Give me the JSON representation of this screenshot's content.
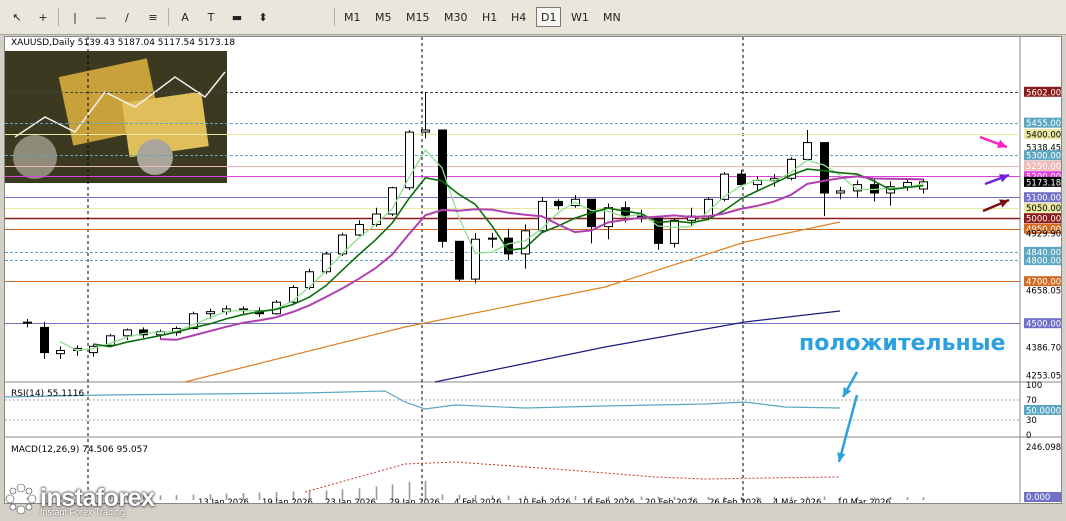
{
  "toolbar": {
    "tools": [
      {
        "name": "cursor-icon",
        "glyph": "↖"
      },
      {
        "name": "crosshair-icon",
        "glyph": "+"
      },
      {
        "name": "vertical-line-icon",
        "glyph": "|"
      },
      {
        "name": "horizontal-line-icon",
        "glyph": "—"
      },
      {
        "name": "trendline-icon",
        "glyph": "∕"
      },
      {
        "name": "channel-icon",
        "glyph": "≡"
      },
      {
        "name": "text-icon",
        "glyph": "A"
      },
      {
        "name": "text-label-icon",
        "glyph": "T"
      },
      {
        "name": "shapes-icon",
        "glyph": "▬"
      },
      {
        "name": "arrows-icon",
        "glyph": "⬍"
      }
    ],
    "timeframes": [
      "M1",
      "M5",
      "M15",
      "M30",
      "H1",
      "H4",
      "D1",
      "W1",
      "MN"
    ],
    "active_timeframe": "D1"
  },
  "chart": {
    "symbol_line": "XAUUSD,Daily  5139.43 5187.04 5117.54 5173.18",
    "rsi_label": "RSI(14) 55.1116",
    "macd_label": "MACD(12,26,9) 74.506 95.057",
    "price_axis": [
      {
        "text": "5602.00",
        "price": 5602,
        "tag": true,
        "bg": "#8b1a1a",
        "fg": "#ffffff"
      },
      {
        "text": "5455.00",
        "price": 5455,
        "tag": true,
        "bg": "#5ba7c2",
        "fg": "#ffffff"
      },
      {
        "text": "5400.00",
        "price": 5400,
        "tag": true,
        "bg": "#e8e8a0",
        "fg": "#000000"
      },
      {
        "text": "5338.45",
        "price": 5338,
        "tag": false
      },
      {
        "text": "5300.00",
        "price": 5300,
        "tag": true,
        "bg": "#5ba7c2",
        "fg": "#ffffff"
      },
      {
        "text": "5250.00",
        "price": 5250,
        "tag": true,
        "bg": "#f2b8b8",
        "fg": "#ffffff"
      },
      {
        "text": "5200.00",
        "price": 5200,
        "tag": true,
        "bg": "#e040e0",
        "fg": "#ffffff"
      },
      {
        "text": "5173.18",
        "price": 5173,
        "tag": true,
        "bg": "#000000",
        "fg": "#ffffff"
      },
      {
        "text": "5100.00",
        "price": 5100,
        "tag": true,
        "bg": "#7070c8",
        "fg": "#ffffff"
      },
      {
        "text": "5050.00",
        "price": 5050,
        "tag": true,
        "bg": "#e8e8a0",
        "fg": "#000000"
      },
      {
        "text": "5000.00",
        "price": 5000,
        "tag": true,
        "bg": "#8b1a1a",
        "fg": "#ffffff"
      },
      {
        "text": "4950.00",
        "price": 4950,
        "tag": true,
        "bg": "#d2691e",
        "fg": "#ffffff"
      },
      {
        "text": "4929.90",
        "price": 4930,
        "tag": false
      },
      {
        "text": "4840.00",
        "price": 4840,
        "tag": true,
        "bg": "#5ba7c2",
        "fg": "#ffffff"
      },
      {
        "text": "4800.00",
        "price": 4800,
        "tag": true,
        "bg": "#5ba7c2",
        "fg": "#ffffff"
      },
      {
        "text": "4700.00",
        "price": 4700,
        "tag": true,
        "bg": "#d2691e",
        "fg": "#ffffff"
      },
      {
        "text": "4658.05",
        "price": 4658,
        "tag": false
      },
      {
        "text": "4500.00",
        "price": 4500,
        "tag": true,
        "bg": "#7070c8",
        "fg": "#ffffff"
      },
      {
        "text": "4386.70",
        "price": 4387,
        "tag": false
      },
      {
        "text": "4253.05",
        "price": 4253,
        "tag": false
      }
    ],
    "rsi_axis": [
      "100",
      "70",
      "50.0000",
      "30",
      "0"
    ],
    "macd_axis": [
      "246.098",
      "0.000"
    ],
    "date_axis": [
      "13 Jan 2026",
      "19 Jan 2026",
      "23 Jan 2026",
      "29 Jan 2026",
      "4 Feb 2026",
      "10 Feb 2026",
      "16 Feb 2026",
      "20 Feb 2026",
      "26 Feb 2026",
      "4 Mar 2026",
      "10 Mar 2026"
    ],
    "annotation": "положительные",
    "colors": {
      "bull": "#ffffff",
      "bear": "#000000",
      "ma_fast": "#90e090",
      "ma_mid": "#0a6e0a",
      "ma_slow": "#b040b0",
      "ma_100": "#e08020",
      "ma_200": "#1a1a80"
    }
  },
  "logo": {
    "name": "instaforex",
    "tagline": "Instant Forex Trading"
  }
}
